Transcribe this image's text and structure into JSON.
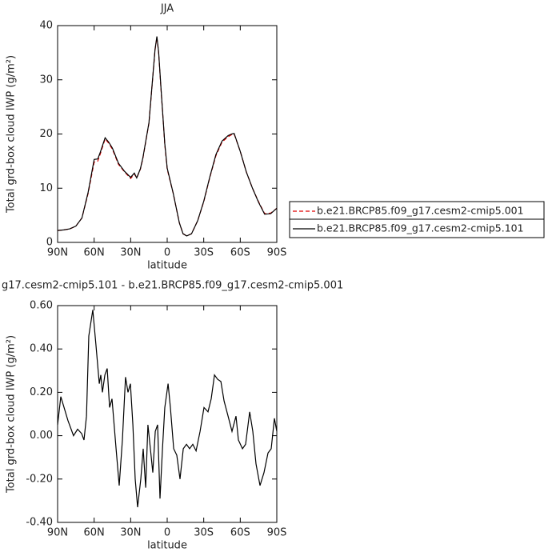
{
  "chart_data": [
    {
      "type": "line",
      "title": "JJA",
      "xlabel": "latitude",
      "ylabel": "Total grd-box cloud IWP (g/m²)",
      "x": [
        90,
        85,
        80,
        75,
        70,
        65,
        60,
        57,
        55,
        51,
        48,
        45,
        40,
        35,
        30,
        27,
        25,
        22,
        20,
        15,
        12,
        10,
        8.5,
        7,
        5,
        2,
        0,
        -5,
        -10,
        -13,
        -16,
        -20,
        -25,
        -30,
        -35,
        -40,
        -45,
        -50,
        -53,
        -55,
        -60,
        -65,
        -70,
        -75,
        -80,
        -85,
        -90
      ],
      "series": [
        {
          "name": "b.e21.BRCP85.f09_g17.cesm2-cmip5.001",
          "color": "#e00000",
          "line_style": "dashed",
          "values": [
            2.2,
            2.3,
            2.5,
            3.0,
            4.5,
            9.0,
            14.8,
            15.0,
            16.3,
            19.1,
            18.3,
            17.2,
            14.4,
            13.0,
            11.8,
            12.6,
            11.9,
            13.5,
            15.5,
            22.0,
            30.0,
            35.5,
            37.8,
            35.0,
            28.0,
            18.0,
            13.5,
            9.0,
            3.6,
            1.6,
            1.2,
            1.6,
            4.0,
            7.5,
            12.0,
            16.0,
            18.5,
            19.5,
            19.9,
            20.0,
            16.8,
            13.0,
            10.0,
            7.5,
            5.3,
            5.4,
            6.3
          ]
        },
        {
          "name": "b.e21.BRCP85.f09_g17.cesm2-cmip5.101",
          "color": "#000000",
          "line_style": "solid",
          "values": [
            2.2,
            2.3,
            2.5,
            3.0,
            4.5,
            9.2,
            15.3,
            15.4,
            16.6,
            19.3,
            18.5,
            17.4,
            14.6,
            13.1,
            12.0,
            12.8,
            11.9,
            13.6,
            15.6,
            22.1,
            30.1,
            35.6,
            38.0,
            35.1,
            28.1,
            18.2,
            13.7,
            9.0,
            3.6,
            1.6,
            1.2,
            1.6,
            4.0,
            7.6,
            12.1,
            16.2,
            18.7,
            19.7,
            20.0,
            20.1,
            16.8,
            13.0,
            10.0,
            7.4,
            5.2,
            5.3,
            6.3
          ]
        }
      ],
      "xlim": [
        90,
        -90
      ],
      "ylim": [
        0,
        40
      ],
      "xticks": [
        {
          "value": 90,
          "label": "90N"
        },
        {
          "value": 60,
          "label": "60N"
        },
        {
          "value": 30,
          "label": "30N"
        },
        0,
        {
          "value": -30,
          "label": "30S"
        },
        {
          "value": -60,
          "label": "60S"
        },
        {
          "value": -90,
          "label": "90S"
        }
      ],
      "yticks": [
        0,
        10,
        20,
        30,
        40
      ],
      "legend": "right"
    },
    {
      "type": "line",
      "title": "g17.cesm2-cmip5.101 - b.e21.BRCP85.f09_g17.cesm2-cmip5.001",
      "xlabel": "latitude",
      "ylabel": "Total grd-box cloud IWP (g/m²)",
      "x": [
        90,
        87.4,
        84.7,
        81.5,
        76.9,
        73.6,
        70.3,
        68.3,
        66.3,
        64.4,
        61.1,
        58.5,
        55.8,
        54.5,
        53.2,
        51.2,
        49.3,
        47.3,
        45.3,
        42.0,
        39.4,
        36.8,
        34.2,
        32.2,
        30.2,
        28.2,
        26.3,
        24.3,
        21.7,
        19.7,
        17.7,
        15.8,
        13.8,
        11.8,
        9.8,
        7.9,
        5.9,
        3.9,
        2.0,
        -0.7,
        -2.6,
        -5.3,
        -7.9,
        -10.5,
        -13.2,
        -15.8,
        -18.4,
        -21.0,
        -23.7,
        -27.0,
        -30.2,
        -33.5,
        -36.1,
        -38.8,
        -41.4,
        -44.1,
        -46.7,
        -50.0,
        -53.2,
        -56.5,
        -58.5,
        -61.8,
        -64.4,
        -67.7,
        -70.3,
        -72.9,
        -76.2,
        -79.5,
        -82.8,
        -85.4,
        -88.0,
        -90
      ],
      "series": [
        {
          "color": "#000000",
          "line_style": "solid",
          "values": [
            0.05,
            0.18,
            0.13,
            0.07,
            0.0,
            0.03,
            0.01,
            -0.02,
            0.09,
            0.46,
            0.58,
            0.42,
            0.24,
            0.28,
            0.2,
            0.28,
            0.31,
            0.13,
            0.17,
            -0.06,
            -0.23,
            -0.02,
            0.27,
            0.2,
            0.24,
            0.05,
            -0.2,
            -0.33,
            -0.2,
            -0.06,
            -0.24,
            0.05,
            -0.06,
            -0.17,
            0.02,
            0.05,
            -0.29,
            -0.06,
            0.13,
            0.24,
            0.13,
            -0.06,
            -0.09,
            -0.2,
            -0.06,
            -0.04,
            -0.06,
            -0.04,
            -0.07,
            0.02,
            0.13,
            0.11,
            0.17,
            0.28,
            0.26,
            0.25,
            0.16,
            0.09,
            0.02,
            0.09,
            -0.02,
            -0.06,
            -0.04,
            0.11,
            0.02,
            -0.13,
            -0.23,
            -0.17,
            -0.08,
            -0.06,
            0.08,
            0.02
          ]
        }
      ],
      "xlim": [
        90,
        -90
      ],
      "ylim": [
        -0.4,
        0.6
      ],
      "xticks": [
        {
          "value": 90,
          "label": "90N"
        },
        {
          "value": 60,
          "label": "60N"
        },
        {
          "value": 30,
          "label": "30N"
        },
        0,
        {
          "value": -30,
          "label": "30S"
        },
        {
          "value": -60,
          "label": "60S"
        },
        {
          "value": -90,
          "label": "90S"
        }
      ],
      "yticks": [
        {
          "value": 0.6,
          "label": "0.60"
        },
        {
          "value": 0.4,
          "label": "0.40"
        },
        {
          "value": 0.2,
          "label": "0.20"
        },
        {
          "value": 0,
          "label": "0.00"
        },
        {
          "value": -0.2,
          "label": "-0.20"
        },
        {
          "value": -0.4,
          "label": "-0.40"
        }
      ]
    }
  ]
}
